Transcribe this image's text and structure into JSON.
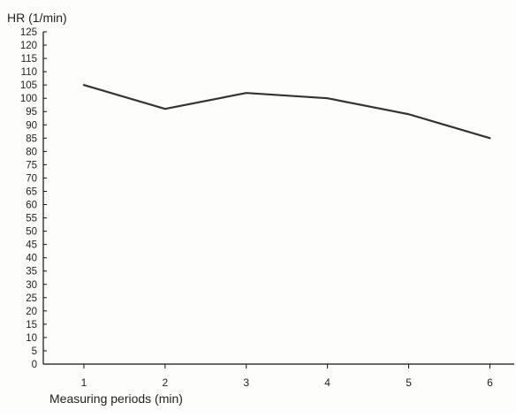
{
  "chart_data": {
    "type": "line",
    "title": "",
    "xlabel": "Measuring periods (min)",
    "ylabel": "HR (1/min)",
    "x": [
      1,
      2,
      3,
      4,
      5,
      6
    ],
    "categories": [
      "1",
      "2",
      "3",
      "4",
      "5",
      "6"
    ],
    "series": [
      {
        "values": [
          105,
          96,
          102,
          100,
          94,
          85
        ]
      }
    ],
    "xlim": [
      0.5,
      6.3
    ],
    "ylim": [
      0,
      125
    ],
    "yticks": [
      0,
      5,
      10,
      15,
      20,
      25,
      30,
      35,
      40,
      45,
      50,
      55,
      60,
      65,
      70,
      75,
      80,
      85,
      90,
      95,
      100,
      105,
      110,
      115,
      120,
      125
    ],
    "xticks": [
      1,
      2,
      3,
      4,
      5,
      6
    ],
    "grid": false,
    "legend": "none",
    "colors": {
      "line": "#333333",
      "axis": "#111111",
      "background": "#fdfdfb"
    }
  }
}
